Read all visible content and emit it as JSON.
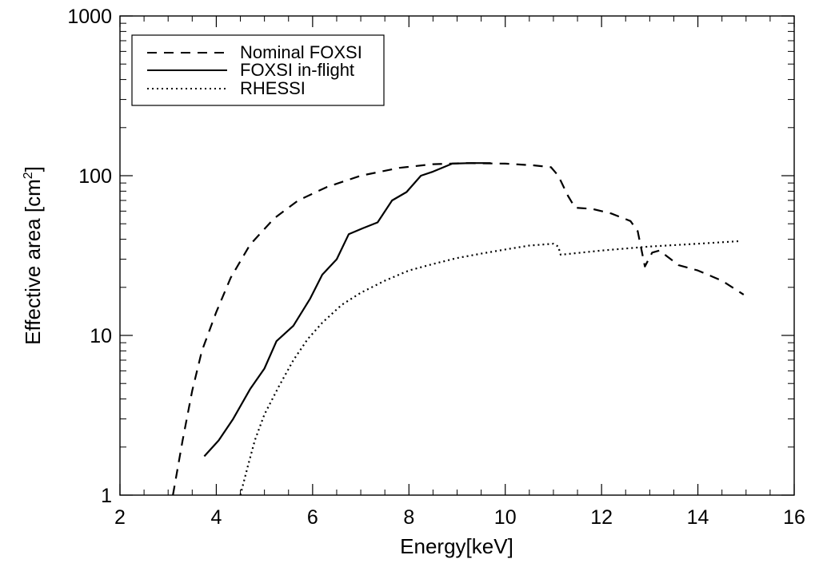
{
  "chart_data": {
    "type": "line",
    "title": "",
    "xlabel": "Energy[keV]",
    "ylabel": "Effective area [cm",
    "ylabel_sup": "2",
    "ylabel_end": "]",
    "xlim": [
      2,
      16
    ],
    "ylim": [
      1,
      1000
    ],
    "yscale": "log",
    "grid": false,
    "legend_position": "top-left",
    "x_ticks": [
      2,
      4,
      6,
      8,
      10,
      12,
      14,
      16
    ],
    "x_tick_labels": [
      "2",
      "4",
      "6",
      "8",
      "10",
      "12",
      "14",
      "16"
    ],
    "y_ticks": [
      1,
      10,
      100,
      1000
    ],
    "y_tick_labels": [
      "1",
      "10",
      "100",
      "1000"
    ],
    "series": [
      {
        "name": "Nominal FOXSI",
        "style": "dashed",
        "color": "#000000",
        "x": [
          3.1,
          3.3,
          3.5,
          3.7,
          4.0,
          4.3,
          4.7,
          5.2,
          5.7,
          6.3,
          7.0,
          7.8,
          8.5,
          9.2,
          10.0,
          10.6,
          10.95,
          11.1,
          11.3,
          11.45,
          11.8,
          12.2,
          12.6,
          12.75,
          12.9,
          13.05,
          13.2,
          13.6,
          14.0,
          14.5,
          14.95
        ],
        "y": [
          1.0,
          2.2,
          4.5,
          8.0,
          14.0,
          23.0,
          37.0,
          54.0,
          70.0,
          85.0,
          100.0,
          112.0,
          118.0,
          120.0,
          119.0,
          116.0,
          113.0,
          100.0,
          75.0,
          63.0,
          62.0,
          58.0,
          52.0,
          45.0,
          27.0,
          33.0,
          34.0,
          27.5,
          25.5,
          22.0,
          18.0
        ]
      },
      {
        "name": "FOXSI in-flight",
        "style": "solid",
        "color": "#000000",
        "x": [
          3.75,
          4.05,
          4.35,
          4.7,
          5.0,
          5.25,
          5.6,
          5.95,
          6.2,
          6.5,
          6.75,
          7.05,
          7.35,
          7.65,
          7.95,
          8.25,
          8.5,
          8.9,
          9.3,
          9.7
        ],
        "y": [
          1.75,
          2.2,
          3.0,
          4.6,
          6.2,
          9.2,
          11.5,
          17.0,
          24.0,
          30.0,
          43.0,
          47.0,
          51.0,
          70.0,
          79.0,
          100.0,
          106.0,
          119.0,
          120.0,
          120.0
        ]
      },
      {
        "name": "RHESSI",
        "style": "dotted",
        "color": "#000000",
        "x": [
          4.5,
          4.65,
          4.8,
          5.0,
          5.3,
          5.6,
          5.9,
          6.2,
          6.6,
          7.0,
          7.5,
          8.0,
          8.5,
          9.0,
          9.5,
          10.0,
          10.5,
          11.0,
          11.1,
          11.15,
          12.0,
          13.0,
          14.0,
          14.9
        ],
        "y": [
          1.0,
          1.5,
          2.2,
          3.2,
          4.8,
          7.0,
          9.5,
          12.0,
          15.5,
          18.5,
          22.0,
          25.5,
          28.0,
          30.5,
          32.5,
          34.5,
          36.5,
          37.5,
          36.0,
          32.0,
          34.0,
          36.0,
          37.5,
          39.0
        ]
      }
    ]
  }
}
